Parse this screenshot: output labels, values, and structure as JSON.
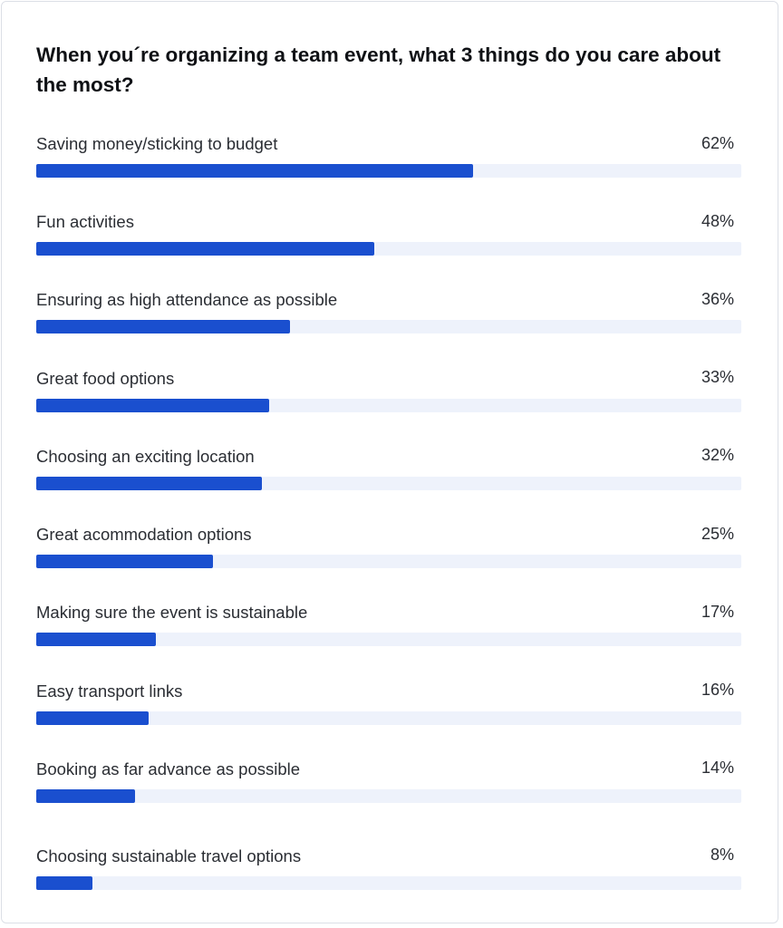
{
  "title": "When you´re organizing a team event, what 3 things do you care about the most?",
  "colors": {
    "bar": "#1a4fcf",
    "track": "#eef2fb",
    "text": "#2a2d33"
  },
  "chart_data": {
    "type": "bar",
    "orientation": "horizontal",
    "title": "When you´re organizing a team event, what 3 things do you care about the most?",
    "xlim": [
      0,
      100
    ],
    "unit": "%",
    "grid": false,
    "categories": [
      "Saving money/sticking to budget",
      "Fun activities",
      "Ensuring as high attendance as possible",
      "Great food options",
      "Choosing an exciting location",
      "Great acommodation options",
      "Making sure the event is sustainable",
      "Easy transport links",
      "Booking as far advance as possible",
      "Choosing sustainable travel options"
    ],
    "values": [
      62,
      48,
      36,
      33,
      32,
      25,
      17,
      16,
      14,
      8
    ],
    "value_labels": [
      "62%",
      "48%",
      "36%",
      "33%",
      "32%",
      "25%",
      "17%",
      "16%",
      "14%",
      "8%"
    ]
  }
}
